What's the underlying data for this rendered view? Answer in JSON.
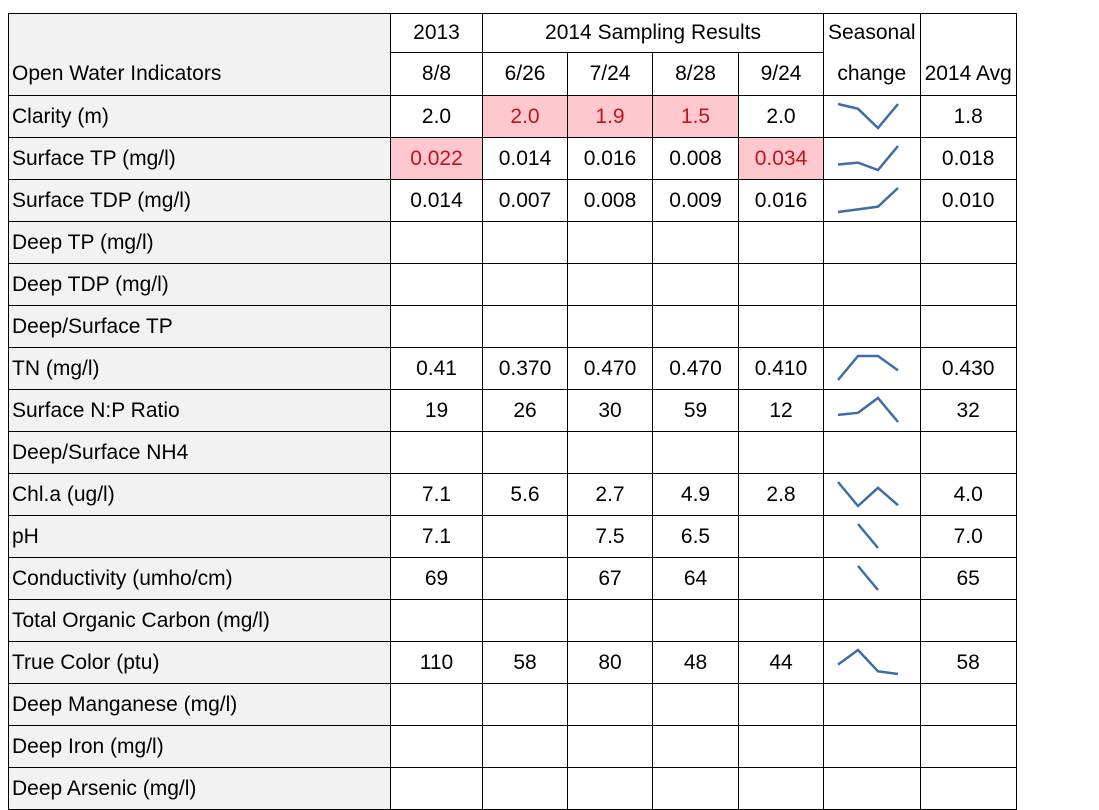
{
  "header": {
    "first_col": "Open Water Indicators",
    "year_2013": "2013",
    "group_2014": "2014 Sampling Results",
    "dates": [
      "8/8",
      "6/26",
      "7/24",
      "8/28",
      "9/24"
    ],
    "seasonal": [
      "Seasonal",
      "change"
    ],
    "avg": "2014 Avg"
  },
  "table": {
    "sparkline_color": "#3e6ca8",
    "highlight_color": "#ffc7ce",
    "rows": [
      {
        "label": "Clarity (m)",
        "values": [
          "2.0",
          "2.0",
          "1.9",
          "1.5",
          "2.0"
        ],
        "avg": "1.8",
        "highlight": [
          1,
          2,
          3
        ]
      },
      {
        "label": "Surface TP (mg/l)",
        "values": [
          "0.022",
          "0.014",
          "0.016",
          "0.008",
          "0.034"
        ],
        "avg": "0.018",
        "highlight": [
          0,
          4
        ]
      },
      {
        "label": "Surface TDP (mg/l)",
        "values": [
          "0.014",
          "0.007",
          "0.008",
          "0.009",
          "0.016"
        ],
        "avg": "0.010",
        "highlight": []
      },
      {
        "label": "Deep TP (mg/l)",
        "values": [
          null,
          null,
          null,
          null,
          null
        ],
        "avg": null,
        "highlight": []
      },
      {
        "label": "Deep TDP (mg/l)",
        "values": [
          null,
          null,
          null,
          null,
          null
        ],
        "avg": null,
        "highlight": []
      },
      {
        "label": "Deep/Surface TP",
        "values": [
          null,
          null,
          null,
          null,
          null
        ],
        "avg": null,
        "highlight": []
      },
      {
        "label": "TN (mg/l)",
        "values": [
          "0.41",
          "0.370",
          "0.470",
          "0.470",
          "0.410"
        ],
        "avg": "0.430",
        "highlight": []
      },
      {
        "label": "Surface N:P Ratio",
        "values": [
          "19",
          "26",
          "30",
          "59",
          "12"
        ],
        "avg": "32",
        "highlight": []
      },
      {
        "label": "Deep/Surface NH4",
        "values": [
          null,
          null,
          null,
          null,
          null
        ],
        "avg": null,
        "highlight": []
      },
      {
        "label": "Chl.a (ug/l)",
        "values": [
          "7.1",
          "5.6",
          "2.7",
          "4.9",
          "2.8"
        ],
        "avg": "4.0",
        "highlight": []
      },
      {
        "label": "pH",
        "values": [
          "7.1",
          null,
          "7.5",
          "6.5",
          null
        ],
        "avg": "7.0",
        "highlight": []
      },
      {
        "label": "Conductivity (umho/cm)",
        "values": [
          "69",
          null,
          "67",
          "64",
          null
        ],
        "avg": "65",
        "highlight": []
      },
      {
        "label": "Total Organic Carbon (mg/l)",
        "values": [
          null,
          null,
          null,
          null,
          null
        ],
        "avg": null,
        "highlight": []
      },
      {
        "label": "True Color (ptu)",
        "values": [
          "110",
          "58",
          "80",
          "48",
          "44"
        ],
        "avg": "58",
        "highlight": []
      },
      {
        "label": "Deep Manganese (mg/l)",
        "values": [
          null,
          null,
          null,
          null,
          null
        ],
        "avg": null,
        "highlight": []
      },
      {
        "label": "Deep Iron (mg/l)",
        "values": [
          null,
          null,
          null,
          null,
          null
        ],
        "avg": null,
        "highlight": []
      },
      {
        "label": "Deep Arsenic (mg/l)",
        "values": [
          null,
          null,
          null,
          null,
          null
        ],
        "avg": null,
        "highlight": []
      }
    ]
  }
}
